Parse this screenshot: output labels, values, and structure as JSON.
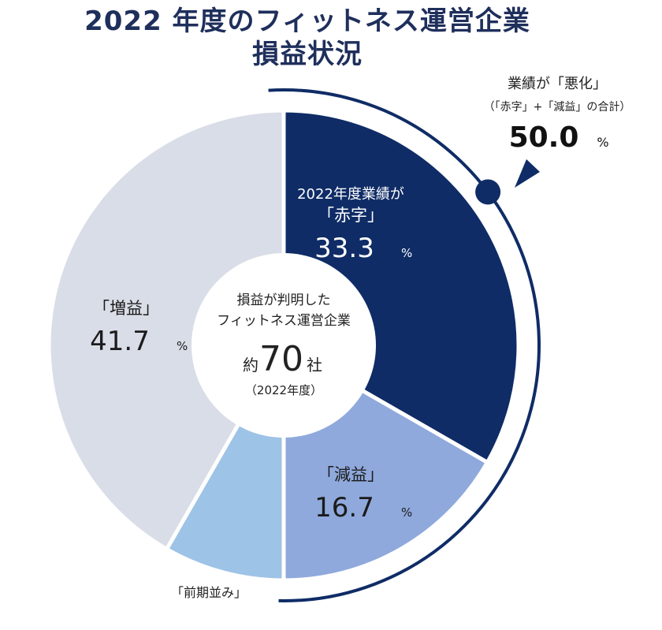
{
  "title": {
    "line1": "2022 年度のフィットネス運営企業",
    "line2": "損益状況"
  },
  "chart_data": {
    "type": "pie",
    "style": "donut",
    "unit": "%",
    "slices": [
      {
        "lines": [
          "2022年度業績が",
          "「赤字」"
        ],
        "value": 33.3,
        "value_text": "33.3",
        "color": "#0f2c66",
        "text_color": "#ffffff"
      },
      {
        "lines": [
          "「減益」"
        ],
        "value": 16.7,
        "value_text": "16.7",
        "color": "#8fa9dc",
        "text_color": "#1b1b1b"
      },
      {
        "lines": [
          "「前期並み」"
        ],
        "value": 8.3,
        "value_text": "",
        "color": "#9dc3e6",
        "text_color": "#1b1b1b"
      },
      {
        "lines": [
          "「増益」"
        ],
        "value": 41.7,
        "value_text": "41.7",
        "color": "#d9dde7",
        "text_color": "#1b1b1b"
      }
    ],
    "center": {
      "line1": "損益が判明した",
      "line2": "フィットネス運営企業",
      "prefix": "約",
      "number": "70",
      "suffix": "社",
      "sub": "（2022年度）"
    },
    "callout": {
      "title": "業績が「悪化」",
      "subtitle": "（「赤字」+「減益」の合計）",
      "value": "50.0",
      "unit": "%",
      "color": "#0f2c66"
    }
  }
}
